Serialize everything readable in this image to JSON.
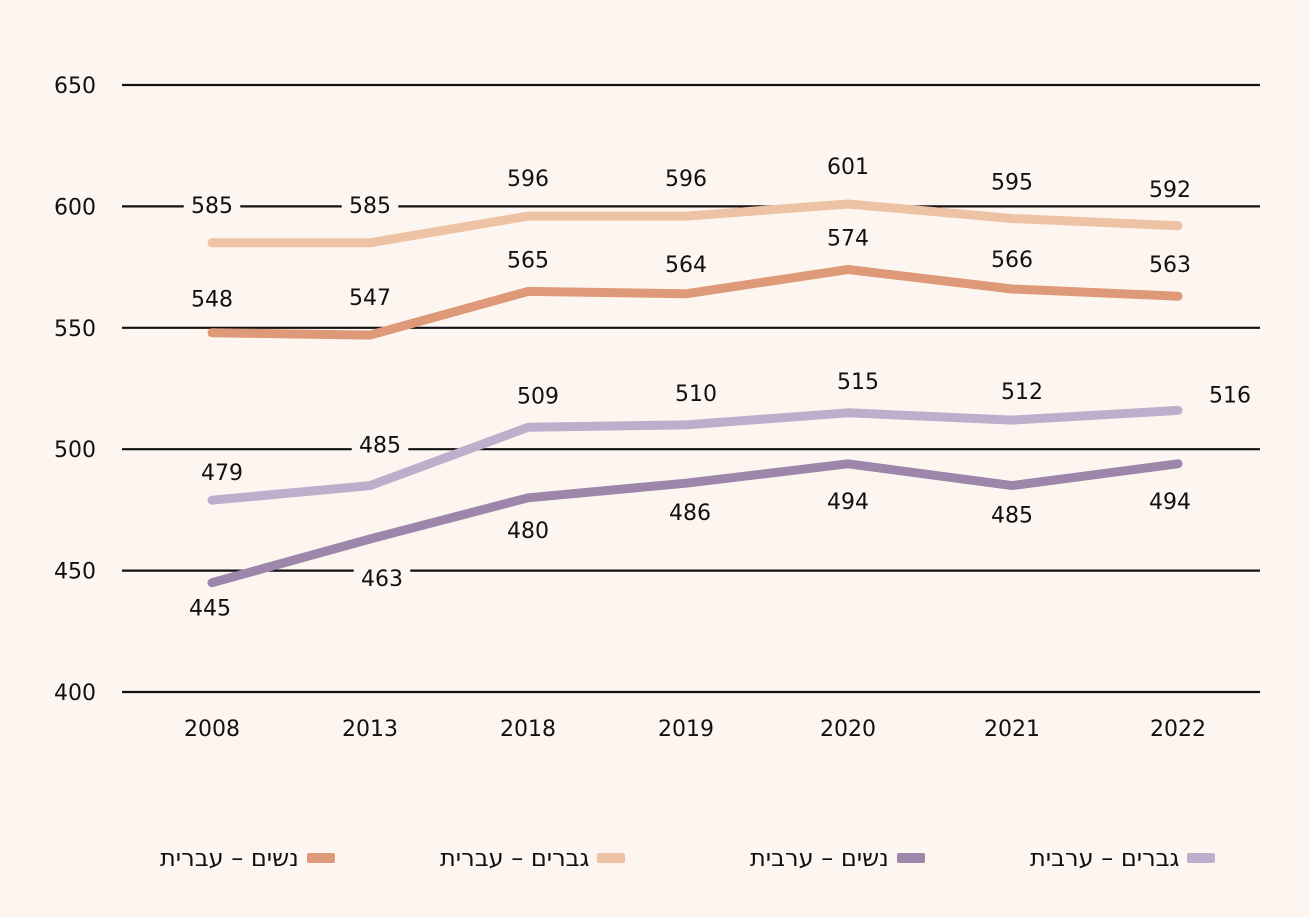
{
  "chart_data": {
    "type": "line",
    "title": "",
    "xlabel": "",
    "ylabel": "",
    "x": [
      "2008",
      "2013",
      "2018",
      "2019",
      "2020",
      "2021",
      "2022"
    ],
    "ylim": [
      400,
      650
    ],
    "yticks": [
      400,
      450,
      500,
      550,
      600,
      650
    ],
    "grid": true,
    "legend_position": "bottom",
    "series": [
      {
        "name": "נשים – עברית",
        "color": "#DE9A78",
        "values": [
          548,
          547,
          565,
          564,
          574,
          566,
          563
        ]
      },
      {
        "name": "גברים – עברית",
        "color": "#EEC2A4",
        "values": [
          585,
          585,
          596,
          596,
          601,
          595,
          592
        ]
      },
      {
        "name": "נשים – ערבית",
        "color": "#9C87AB",
        "values": [
          445,
          463,
          480,
          486,
          494,
          485,
          494
        ]
      },
      {
        "name": "גברים – ערבית",
        "color": "#BEAECB",
        "values": [
          479,
          485,
          509,
          510,
          515,
          512,
          516
        ]
      }
    ]
  }
}
